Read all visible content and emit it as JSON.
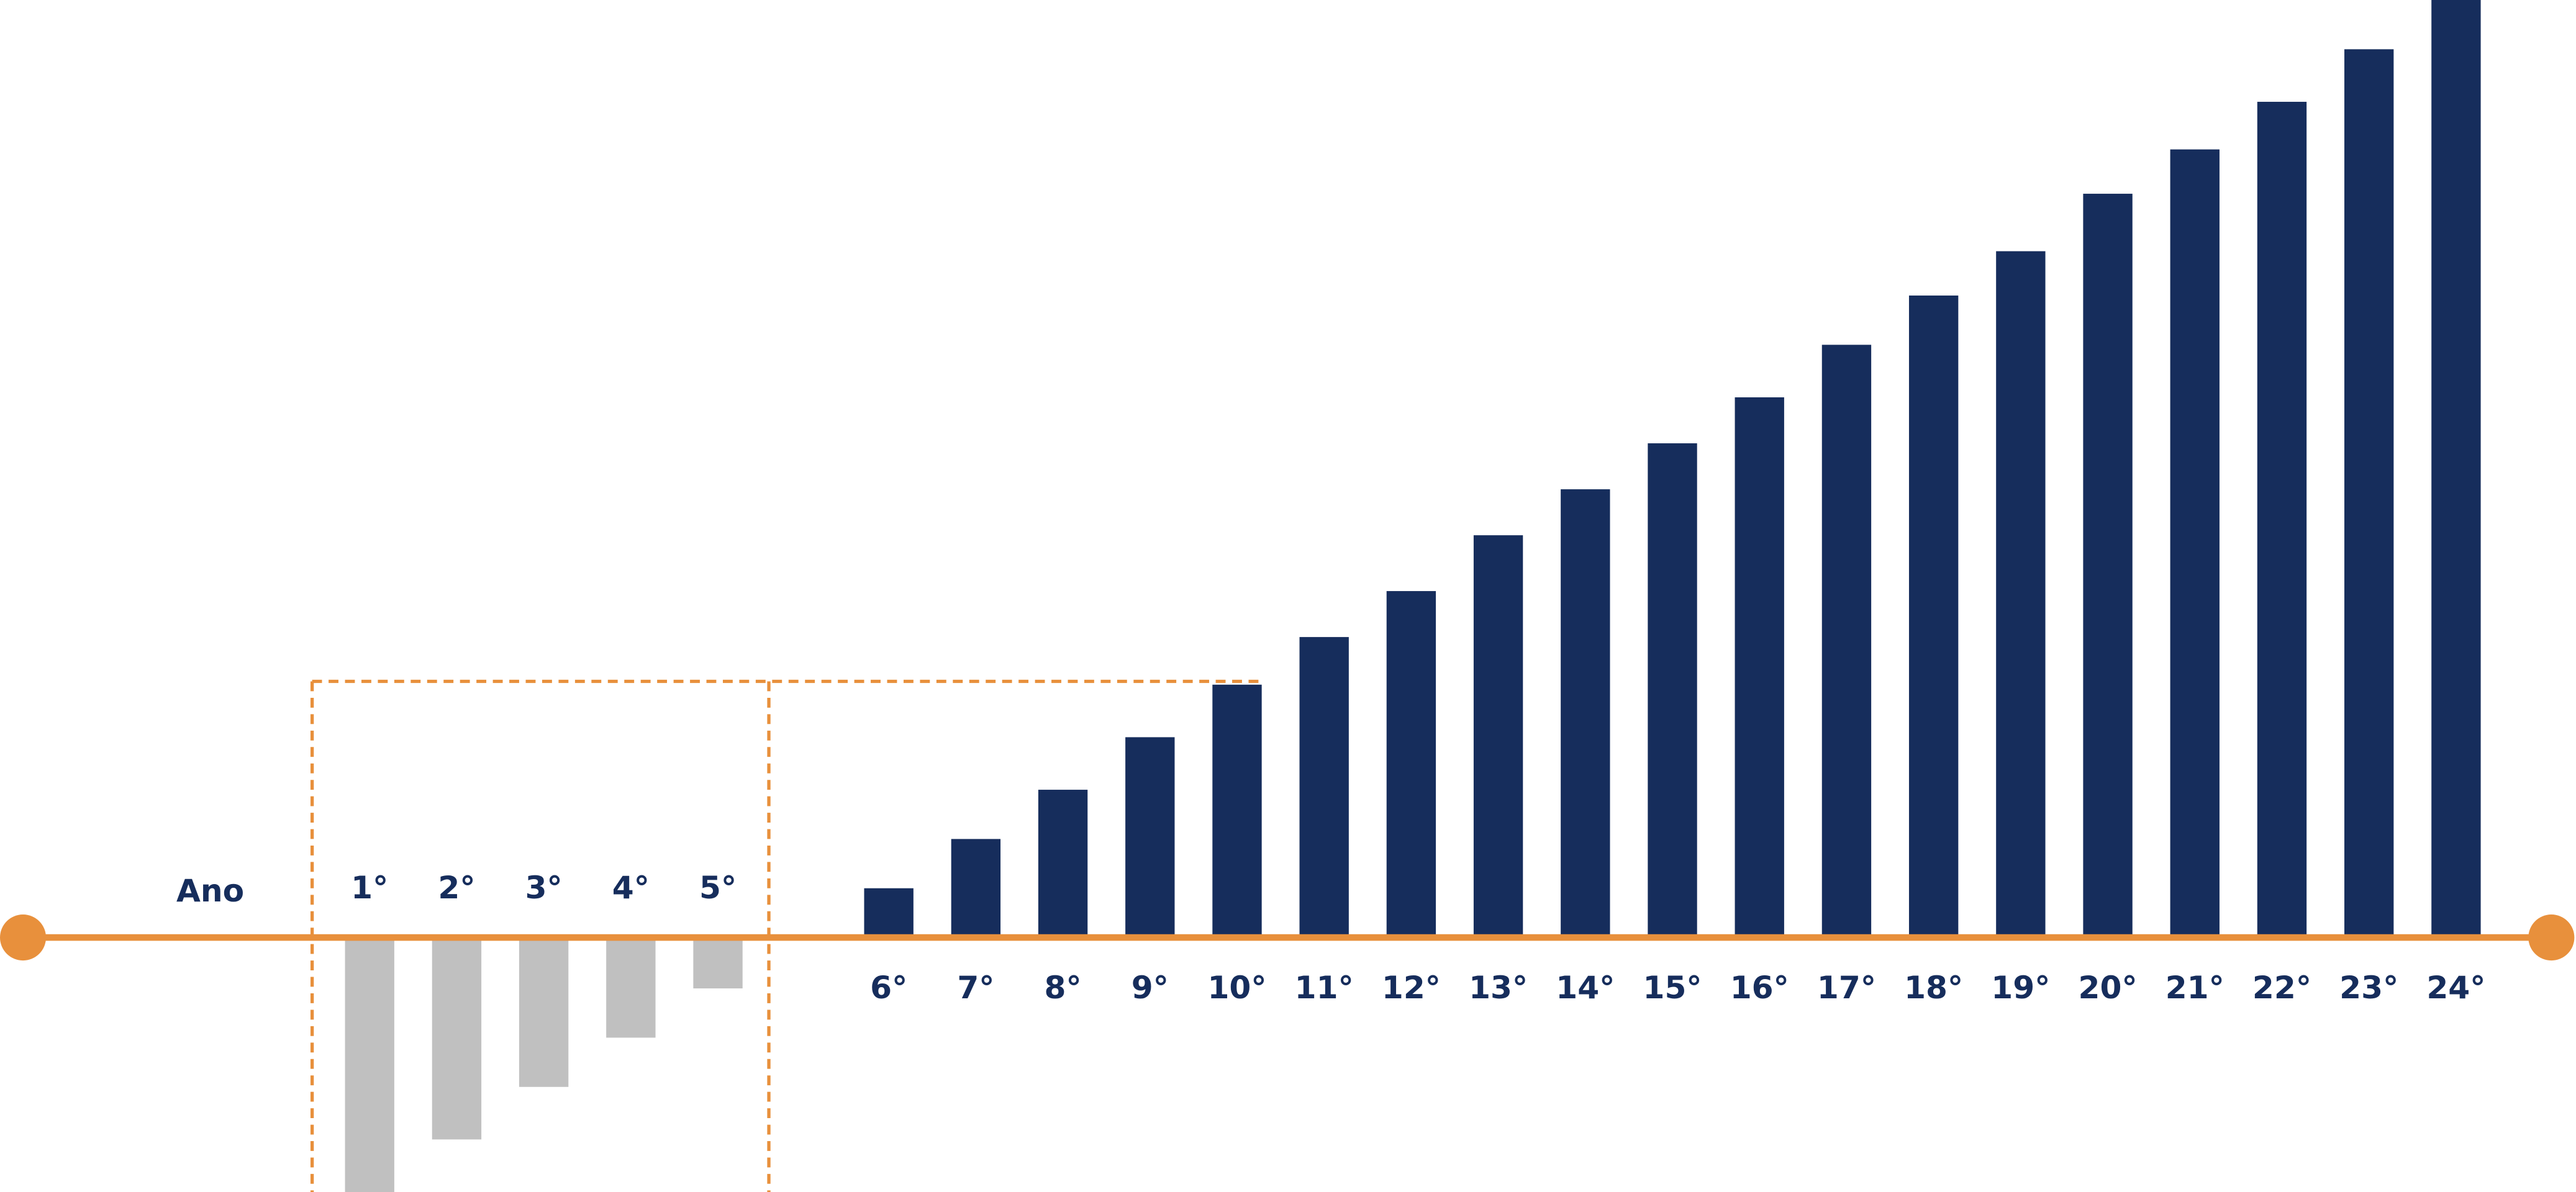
{
  "chart_data": {
    "type": "bar",
    "x_label": "Ano",
    "categories": [
      "1°",
      "2°",
      "3°",
      "4°",
      "5°",
      "6°",
      "7°",
      "8°",
      "9°",
      "10°",
      "11°",
      "12°",
      "13°",
      "14°",
      "15°",
      "16°",
      "17°",
      "18°",
      "19°",
      "20°",
      "21°",
      "22°",
      "23°",
      "24°"
    ],
    "values": [
      -155,
      -123,
      -91,
      -61,
      -31,
      30,
      60,
      90,
      122,
      154,
      183,
      211,
      245,
      273,
      301,
      329,
      361,
      391,
      418,
      453,
      480,
      509,
      541,
      571
    ],
    "color": "#162d5c",
    "negative_color": "#c0c0c0",
    "axis_color": "#e8903c",
    "ylim": [
      -155,
      571
    ]
  }
}
